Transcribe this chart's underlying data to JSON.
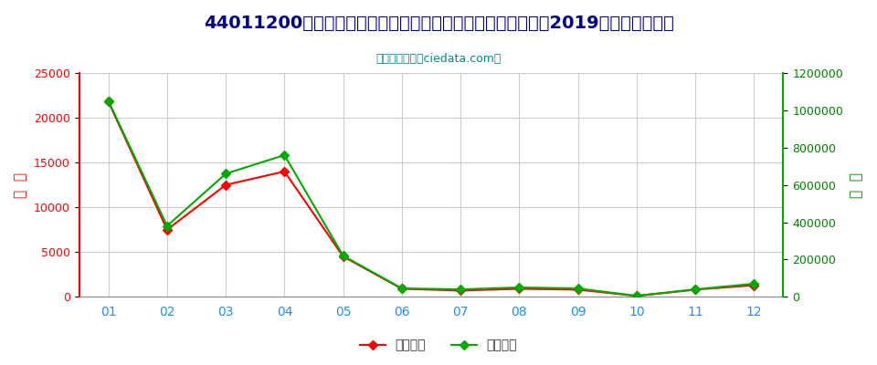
{
  "title": "44011200非针叶木薪柴（圆木段、块、枝、成捆或类似形状）2019年进口月度走势",
  "subtitle": "进出口服务网（ciedata.com）",
  "months": [
    "01",
    "02",
    "03",
    "04",
    "05",
    "06",
    "07",
    "08",
    "09",
    "10",
    "11",
    "12"
  ],
  "import_usd": [
    21800,
    7500,
    12500,
    14000,
    4500,
    900,
    700,
    900,
    800,
    100,
    800,
    1300
  ],
  "import_qty": [
    1050000,
    380000,
    660000,
    760000,
    220000,
    45000,
    40000,
    50000,
    45000,
    5000,
    40000,
    70000
  ],
  "left_ylim": [
    0,
    25000
  ],
  "right_ylim": [
    0,
    1200000
  ],
  "left_yticks": [
    0,
    5000,
    10000,
    15000,
    20000,
    25000
  ],
  "right_yticks": [
    0,
    200000,
    400000,
    600000,
    800000,
    1000000,
    1200000
  ],
  "left_ylabel": "金  额",
  "right_ylabel": "数  量",
  "legend_usd": "进口美元",
  "legend_qty": "进口数量",
  "color_usd": "#FF0000",
  "color_qty": "#00AA00",
  "bg_color": "#FFFFFF",
  "grid_color": "#CCCCCC",
  "title_color": "#00008B",
  "subtitle_color": "#008B8B",
  "ylabel_color_left": "#FF0000",
  "ylabel_color_right": "#008000",
  "xtick_color": "#1E90FF",
  "ytick_color_left": "#FF0000",
  "ytick_color_right": "#008000"
}
